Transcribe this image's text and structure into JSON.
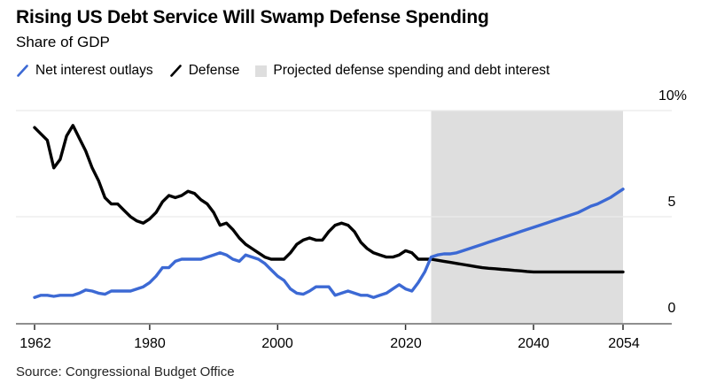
{
  "header": {
    "title": "Rising US Debt Service Will Swamp Defense Spending",
    "subtitle": "Share of GDP"
  },
  "legend": [
    {
      "label": "Net interest outlays",
      "swatch": "line",
      "color": "#3C69D4"
    },
    {
      "label": "Defense",
      "swatch": "line",
      "color": "#000000"
    },
    {
      "label": "Projected defense spending and debt interest",
      "swatch": "area",
      "color": "#DEDEDE"
    }
  ],
  "source": "Source: Congressional Budget Office",
  "chart_data": {
    "type": "line",
    "title": "Rising US Debt Service Will Swamp Defense Spending",
    "subtitle": "Share of GDP",
    "xlabel": "",
    "ylabel": "Share of GDP (%)",
    "ylim": [
      0,
      10
    ],
    "grid": "horizontal",
    "legend_position": "top",
    "unit": "% of GDP",
    "projection": {
      "start": 2024,
      "end": 2054,
      "color": "#DEDEDE",
      "label": "Projected defense spending and debt interest"
    },
    "y_ticks": [
      {
        "label": "10%",
        "value": 10
      },
      {
        "label": "5",
        "value": 5
      },
      {
        "label": "0",
        "value": 0
      }
    ],
    "x_ticks": [
      {
        "label": "1962",
        "value": 1962
      },
      {
        "label": "1980",
        "value": 1980
      },
      {
        "label": "2000",
        "value": 2000
      },
      {
        "label": "2020",
        "value": 2020
      },
      {
        "label": "2040",
        "value": 2040
      },
      {
        "label": "2054",
        "value": 2054
      }
    ],
    "x": [
      1962,
      1963,
      1964,
      1965,
      1966,
      1967,
      1968,
      1969,
      1970,
      1971,
      1972,
      1973,
      1974,
      1975,
      1976,
      1977,
      1978,
      1979,
      1980,
      1981,
      1982,
      1983,
      1984,
      1985,
      1986,
      1987,
      1988,
      1989,
      1990,
      1991,
      1992,
      1993,
      1994,
      1995,
      1996,
      1997,
      1998,
      1999,
      2000,
      2001,
      2002,
      2003,
      2004,
      2005,
      2006,
      2007,
      2008,
      2009,
      2010,
      2011,
      2012,
      2013,
      2014,
      2015,
      2016,
      2017,
      2018,
      2019,
      2020,
      2021,
      2022,
      2023,
      2024,
      2025,
      2026,
      2027,
      2028,
      2029,
      2030,
      2031,
      2032,
      2033,
      2034,
      2035,
      2036,
      2037,
      2038,
      2039,
      2040,
      2041,
      2042,
      2043,
      2044,
      2045,
      2046,
      2047,
      2048,
      2049,
      2050,
      2051,
      2052,
      2053,
      2054
    ],
    "series": [
      {
        "name": "Net interest outlays",
        "color": "#3C69D4",
        "values": [
          1.2,
          1.3,
          1.3,
          1.25,
          1.3,
          1.3,
          1.3,
          1.4,
          1.55,
          1.5,
          1.4,
          1.35,
          1.5,
          1.5,
          1.5,
          1.5,
          1.6,
          1.7,
          1.9,
          2.2,
          2.6,
          2.6,
          2.9,
          3.0,
          3.0,
          3.0,
          3.0,
          3.1,
          3.2,
          3.3,
          3.2,
          3.0,
          2.9,
          3.2,
          3.1,
          3.0,
          2.8,
          2.5,
          2.2,
          2.0,
          1.6,
          1.4,
          1.35,
          1.5,
          1.7,
          1.7,
          1.7,
          1.3,
          1.4,
          1.5,
          1.4,
          1.3,
          1.3,
          1.2,
          1.3,
          1.4,
          1.6,
          1.8,
          1.6,
          1.5,
          1.9,
          2.4,
          3.1,
          3.2,
          3.25,
          3.25,
          3.3,
          3.4,
          3.5,
          3.6,
          3.7,
          3.8,
          3.9,
          4.0,
          4.1,
          4.2,
          4.3,
          4.4,
          4.5,
          4.6,
          4.7,
          4.8,
          4.9,
          5.0,
          5.1,
          5.2,
          5.35,
          5.5,
          5.6,
          5.75,
          5.9,
          6.1,
          6.3
        ]
      },
      {
        "name": "Defense",
        "color": "#000000",
        "values": [
          9.2,
          8.9,
          8.6,
          7.3,
          7.7,
          8.8,
          9.3,
          8.7,
          8.1,
          7.3,
          6.7,
          5.9,
          5.6,
          5.6,
          5.3,
          5.0,
          4.8,
          4.7,
          4.9,
          5.2,
          5.7,
          6.0,
          5.9,
          6.0,
          6.2,
          6.1,
          5.8,
          5.6,
          5.2,
          4.6,
          4.7,
          4.4,
          4.0,
          3.7,
          3.5,
          3.3,
          3.1,
          3.0,
          3.0,
          3.0,
          3.3,
          3.7,
          3.9,
          4.0,
          3.9,
          3.9,
          4.3,
          4.6,
          4.7,
          4.6,
          4.3,
          3.8,
          3.5,
          3.3,
          3.2,
          3.1,
          3.1,
          3.2,
          3.4,
          3.3,
          3.0,
          3.0,
          3.0,
          2.95,
          2.9,
          2.85,
          2.8,
          2.75,
          2.7,
          2.65,
          2.6,
          2.57,
          2.55,
          2.52,
          2.5,
          2.47,
          2.45,
          2.42,
          2.4,
          2.4,
          2.4,
          2.4,
          2.4,
          2.4,
          2.4,
          2.4,
          2.4,
          2.4,
          2.4,
          2.4,
          2.4,
          2.4,
          2.4
        ]
      }
    ]
  }
}
